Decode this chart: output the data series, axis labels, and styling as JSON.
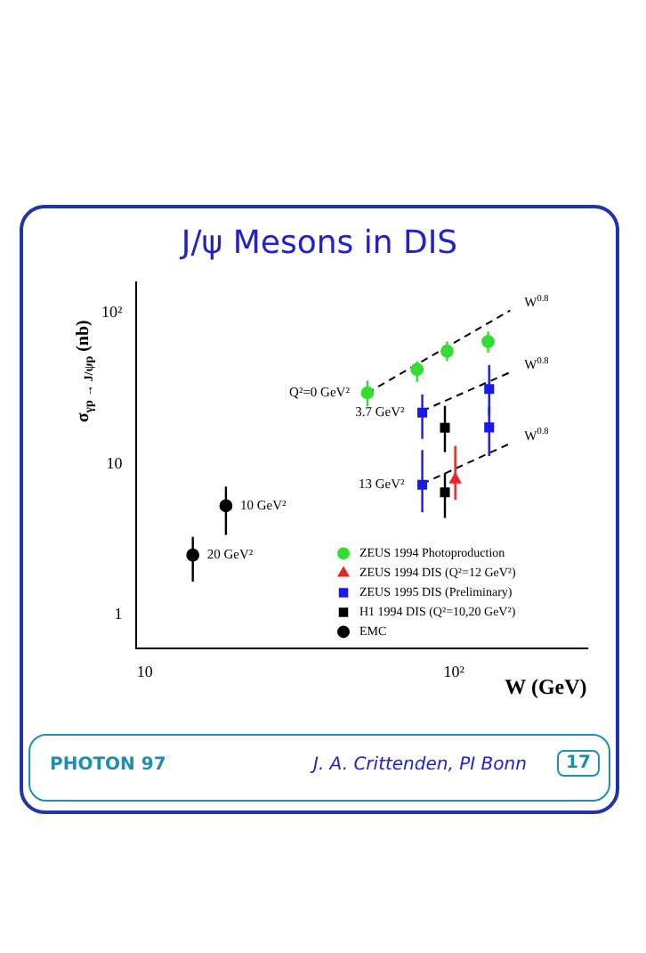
{
  "chart_data": {
    "type": "scatter",
    "title": "J/ψ Mesons in DIS",
    "xlabel": "W (GeV)",
    "ylabel": "σ$_{γp → J/ψp}$ (nb)",
    "log": "xy",
    "xlim": [
      9.4,
      270
    ],
    "ylim": [
      0.6,
      160
    ],
    "xticks": [
      10,
      {
        "value": 100,
        "label": "10²"
      }
    ],
    "yticks": [
      1,
      10,
      {
        "value": 100,
        "label": "10²"
      }
    ],
    "grid": false,
    "legend": "bottom right",
    "series": [
      {
        "name": "ZEUS 1994 Photoproduction",
        "marker": "circle",
        "color": "#33dd33",
        "x": [
          52.5,
          76,
          95,
          129
        ],
        "values": [
          29.6,
          42.4,
          56,
          64.8
        ],
        "errors": [
          [
            24.1,
            35.7
          ],
          [
            35,
            48
          ],
          [
            48,
            64.8
          ],
          [
            54.6,
            75.4
          ]
        ]
      },
      {
        "name": "ZEUS 1994 DIS (Q²=12 GeV²)",
        "type": "scatter",
        "marker": "triangle",
        "color": "#ee2222",
        "x": [
          101
        ],
        "values": [
          7.9
        ],
        "errors": [
          [
            5.8,
            13.2
          ]
        ]
      },
      {
        "name": "ZEUS 1995 DIS (Preliminary)",
        "type": "scatter",
        "marker": "square",
        "color": "#1a1aee",
        "x": [
          79,
          130,
          130,
          79
        ],
        "values": [
          21.9,
          31.4,
          17.5,
          7.3
        ],
        "errors": [
          [
            14.7,
            28.9
          ],
          [
            21,
            45.2
          ],
          [
            11.3,
            23.9
          ],
          [
            4.8,
            12.4
          ]
        ]
      },
      {
        "name": "H1 1994 DIS (Q²=10,20 GeV²)",
        "type": "scatter",
        "marker": "square",
        "color": "#000000",
        "x": [
          93.5,
          93.5
        ],
        "values": [
          17.4,
          6.5
        ],
        "errors": [
          [
            12,
            24.3
          ],
          [
            4.4,
            8.7
          ]
        ]
      },
      {
        "name": "EMC",
        "type": "scatter",
        "marker": "circle",
        "color": "#000000",
        "x": [
          18.3,
          14.3
        ],
        "values": [
          5.3,
          2.5
        ],
        "errors": [
          [
            3.4,
            7.1
          ],
          [
            1.67,
            3.3
          ]
        ]
      },
      {
        "type": "line",
        "line_style": "dashed",
        "marker": "none",
        "color": "#000000",
        "x": [
          52.5,
          152
        ],
        "values": [
          29.6,
          104
        ]
      },
      {
        "type": "line",
        "line_style": "dashed",
        "marker": "none",
        "color": "#000000",
        "x": [
          79,
          152
        ],
        "values": [
          22.5,
          40.5
        ]
      },
      {
        "type": "line",
        "line_style": "dashed",
        "marker": "none",
        "color": "#000000",
        "x": [
          79,
          152
        ],
        "values": [
          7.4,
          13.7
        ]
      }
    ],
    "annotations": [
      {
        "text": "W$^{0.8}$",
        "x": 152,
        "y": 104
      },
      {
        "text": "W$^{0.8}$",
        "x": 152,
        "y": 40.5
      },
      {
        "text": "W$^{0.8}$",
        "x": 152,
        "y": 13.7
      },
      {
        "text": "Q²=0 GeV²",
        "x": 52.5,
        "y": 29.6
      },
      {
        "text": "3.7 GeV²",
        "x": 79,
        "y": 21.9
      },
      {
        "text": "13 GeV²",
        "x": 79,
        "y": 7.3
      },
      {
        "text": "10 GeV²",
        "x": 18.3,
        "y": 5.3
      },
      {
        "text": "20 GeV²",
        "x": 14.3,
        "y": 2.5
      },
      "PHOTON 97",
      "J. A. Crittenden, PI Bonn",
      "17"
    ]
  }
}
